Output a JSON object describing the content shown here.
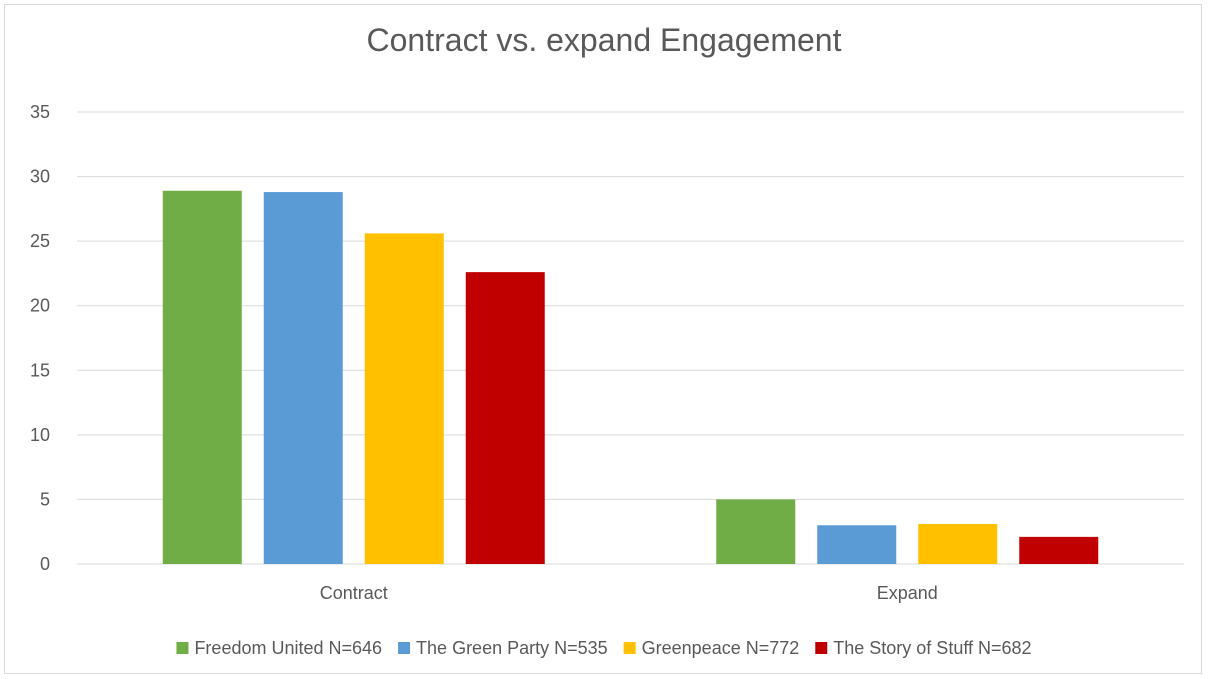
{
  "chart_data": {
    "type": "bar",
    "title": "Contract vs. expand Engagement",
    "categories": [
      "Contract",
      "Expand"
    ],
    "series": [
      {
        "name": "Freedom United N=646",
        "color": "#70ad47",
        "values": [
          28.9,
          5.0
        ]
      },
      {
        "name": "The Green Party N=535",
        "color": "#5b9bd5",
        "values": [
          28.8,
          3.0
        ]
      },
      {
        "name": "Greenpeace N=772",
        "color": "#ffc000",
        "values": [
          25.6,
          3.1
        ]
      },
      {
        "name": "The Story of Stuff N=682",
        "color": "#c00000",
        "values": [
          22.6,
          2.1
        ]
      }
    ],
    "ylim": [
      0,
      35
    ],
    "yticks": [
      0,
      5,
      10,
      15,
      20,
      25,
      30,
      35
    ],
    "grid": true,
    "legend_position": "bottom"
  }
}
